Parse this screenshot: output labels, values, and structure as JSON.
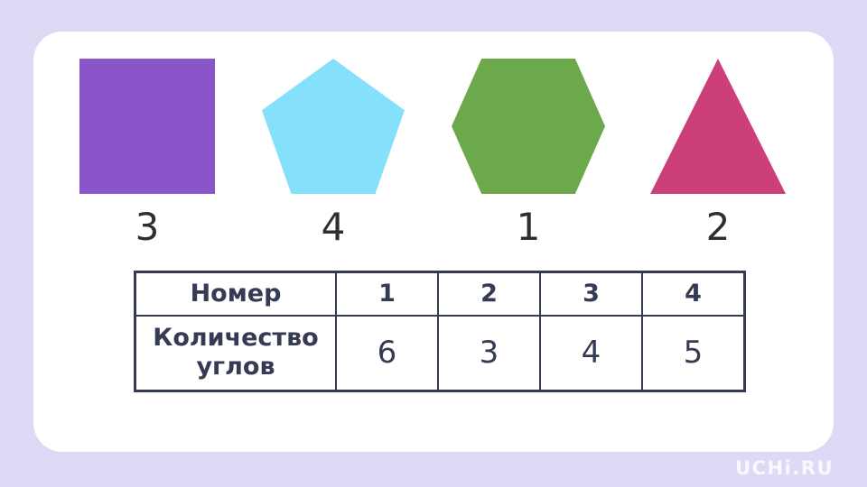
{
  "colors": {
    "page_bg": "#DEDAF5",
    "card_bg": "#FFFFFF",
    "table_ink": "#363B54",
    "shape_label_ink": "#2E2E2E"
  },
  "shapes": [
    {
      "id": "square",
      "color": "#8955C8",
      "label": "3"
    },
    {
      "id": "pentagon",
      "color": "#85E0FB",
      "label": "4"
    },
    {
      "id": "hexagon",
      "color": "#6CA94A",
      "label": "1"
    },
    {
      "id": "triangle",
      "color": "#CB4078",
      "label": "2"
    }
  ],
  "table": {
    "header": [
      "Номер",
      "1",
      "2",
      "3",
      "4"
    ],
    "rows": [
      [
        "Количество углов",
        "6",
        "3",
        "4",
        "5"
      ]
    ]
  },
  "watermark": "UCHi.RU"
}
